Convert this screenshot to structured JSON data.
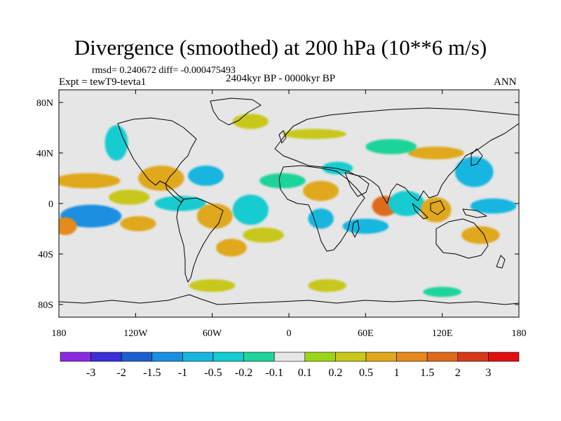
{
  "chart_data": {
    "type": "heatmap",
    "title": "Divergence (smoothed) at 200 hPa (10**6 m/s)",
    "stats_line": "rmsd= 0.240672 diff= -0.000475493",
    "experiment_label": "Expt = tewT9-tevta1",
    "period_label": "2404kyr BP - 0000kyr BP",
    "season_label": "ANN",
    "projection": "cylindrical equidistant, world",
    "xlim": [
      -180,
      180
    ],
    "ylim": [
      -90,
      90
    ],
    "x_ticks": [
      {
        "value": -180,
        "label": "180"
      },
      {
        "value": -120,
        "label": "120W"
      },
      {
        "value": -60,
        "label": "60W"
      },
      {
        "value": 0,
        "label": "0"
      },
      {
        "value": 60,
        "label": "60E"
      },
      {
        "value": 120,
        "label": "120E"
      },
      {
        "value": 180,
        "label": "180"
      }
    ],
    "y_ticks": [
      {
        "value": 80,
        "label": "80N"
      },
      {
        "value": 40,
        "label": "40N"
      },
      {
        "value": 0,
        "label": "0"
      },
      {
        "value": -40,
        "label": "40S"
      },
      {
        "value": -80,
        "label": "80S"
      }
    ],
    "colorbar": {
      "levels": [
        "-3",
        "-2",
        "-1.5",
        "-1",
        "-0.5",
        "-0.2",
        "-0.1",
        "0.1",
        "0.2",
        "0.5",
        "1",
        "1.5",
        "2",
        "3"
      ],
      "colors": [
        "#8a2be2",
        "#3a2fd6",
        "#1c5fd0",
        "#1a8fe0",
        "#19b6e0",
        "#12ccd0",
        "#1fd49a",
        "#e6e6e6",
        "#9ad617",
        "#c8c81a",
        "#e0a81c",
        "#e58a1e",
        "#e06a1e",
        "#d63a1a",
        "#e01010"
      ]
    },
    "features": [
      {
        "lon": -155,
        "lat": -10,
        "rx": 24,
        "ry": 9,
        "value": -1.2
      },
      {
        "lon": -158,
        "lat": 18,
        "rx": 26,
        "ry": 6,
        "value": 0.6
      },
      {
        "lon": -175,
        "lat": -18,
        "rx": 9,
        "ry": 7,
        "value": 1.1
      },
      {
        "lon": -118,
        "lat": -16,
        "rx": 14,
        "ry": 6,
        "value": 0.6
      },
      {
        "lon": -125,
        "lat": 5,
        "rx": 16,
        "ry": 6,
        "value": 0.3
      },
      {
        "lon": -135,
        "lat": 48,
        "rx": 9,
        "ry": 14,
        "value": -0.3
      },
      {
        "lon": -100,
        "lat": 20,
        "rx": 18,
        "ry": 10,
        "value": 0.5
      },
      {
        "lon": -85,
        "lat": 0,
        "rx": 20,
        "ry": 6,
        "value": -0.4
      },
      {
        "lon": -65,
        "lat": 22,
        "rx": 14,
        "ry": 8,
        "value": -0.6
      },
      {
        "lon": -58,
        "lat": -10,
        "rx": 14,
        "ry": 10,
        "value": 0.6
      },
      {
        "lon": -30,
        "lat": -5,
        "rx": 14,
        "ry": 12,
        "value": -0.5
      },
      {
        "lon": -20,
        "lat": -25,
        "rx": 16,
        "ry": 6,
        "value": 0.3
      },
      {
        "lon": -45,
        "lat": -35,
        "rx": 12,
        "ry": 7,
        "value": 0.5
      },
      {
        "lon": -5,
        "lat": 18,
        "rx": 18,
        "ry": 6,
        "value": -0.2
      },
      {
        "lon": 25,
        "lat": 10,
        "rx": 14,
        "ry": 8,
        "value": 0.6
      },
      {
        "lon": 25,
        "lat": -12,
        "rx": 10,
        "ry": 8,
        "value": -0.6
      },
      {
        "lon": 38,
        "lat": 28,
        "rx": 12,
        "ry": 5,
        "value": -0.3
      },
      {
        "lon": 75,
        "lat": -2,
        "rx": 10,
        "ry": 8,
        "value": 1.6
      },
      {
        "lon": 60,
        "lat": -18,
        "rx": 18,
        "ry": 6,
        "value": -0.6
      },
      {
        "lon": 92,
        "lat": 0,
        "rx": 14,
        "ry": 10,
        "value": -0.5
      },
      {
        "lon": 115,
        "lat": 40,
        "rx": 22,
        "ry": 5,
        "value": 0.5
      },
      {
        "lon": 145,
        "lat": 25,
        "rx": 15,
        "ry": 12,
        "value": -1.0
      },
      {
        "lon": 160,
        "lat": -2,
        "rx": 18,
        "ry": 6,
        "value": -1.0
      },
      {
        "lon": 115,
        "lat": -5,
        "rx": 12,
        "ry": 10,
        "value": 0.7
      },
      {
        "lon": 150,
        "lat": -25,
        "rx": 15,
        "ry": 7,
        "value": 0.6
      },
      {
        "lon": 80,
        "lat": 45,
        "rx": 20,
        "ry": 6,
        "value": -0.2
      },
      {
        "lon": 20,
        "lat": 55,
        "rx": 25,
        "ry": 4,
        "value": 0.2
      },
      {
        "lon": -30,
        "lat": 65,
        "rx": 14,
        "ry": 6,
        "value": 0.3
      },
      {
        "lon": -60,
        "lat": -65,
        "rx": 18,
        "ry": 5,
        "value": 0.2
      },
      {
        "lon": 30,
        "lat": -65,
        "rx": 15,
        "ry": 5,
        "value": 0.2
      },
      {
        "lon": 120,
        "lat": -70,
        "rx": 15,
        "ry": 4,
        "value": -0.2
      }
    ]
  }
}
